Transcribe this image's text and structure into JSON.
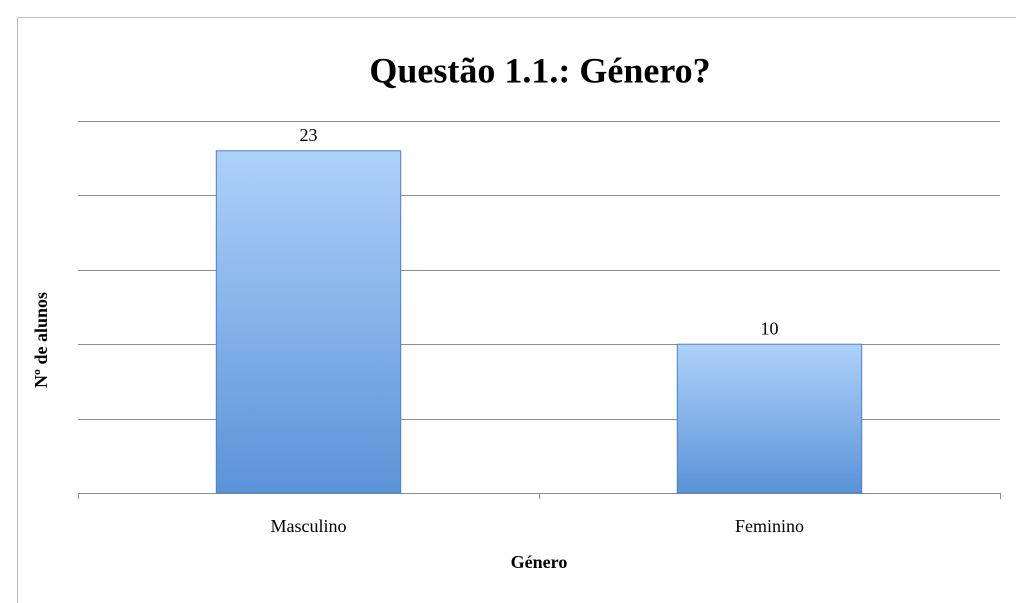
{
  "chart_data": {
    "type": "bar",
    "title": "Questão 1.1.: Género?",
    "x_label": "Género",
    "y_label": "Nº de alunos",
    "categories": [
      "Masculino",
      "Feminino"
    ],
    "values": [
      23,
      10
    ],
    "ylim": [
      0,
      25
    ],
    "yticks": [
      0,
      5,
      10,
      15,
      20,
      25
    ],
    "grid": true
  }
}
